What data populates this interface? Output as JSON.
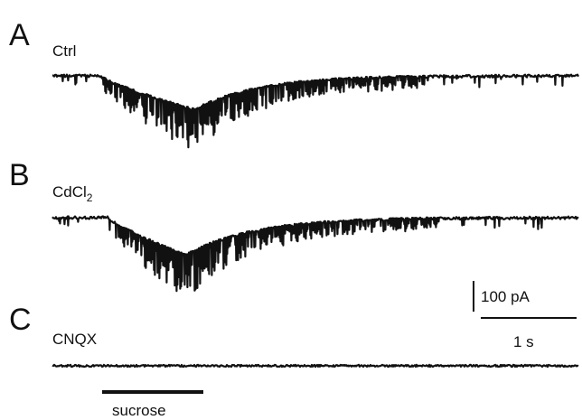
{
  "chart_data": {
    "type": "line",
    "title": "",
    "panels": [
      {
        "letter": "A",
        "condition": "Ctrl",
        "condition_sub": "",
        "response": "large"
      },
      {
        "letter": "B",
        "condition": "CdCl",
        "condition_sub": "2",
        "response": "large-delayed"
      },
      {
        "letter": "C",
        "condition": "CNQX",
        "condition_sub": "",
        "response": "none"
      }
    ],
    "scale_bar": {
      "current": "100 pA",
      "time": "1 s"
    },
    "stimulus": {
      "label": "sucrose",
      "onset_s": 0.5,
      "duration_s": 1.0
    }
  }
}
